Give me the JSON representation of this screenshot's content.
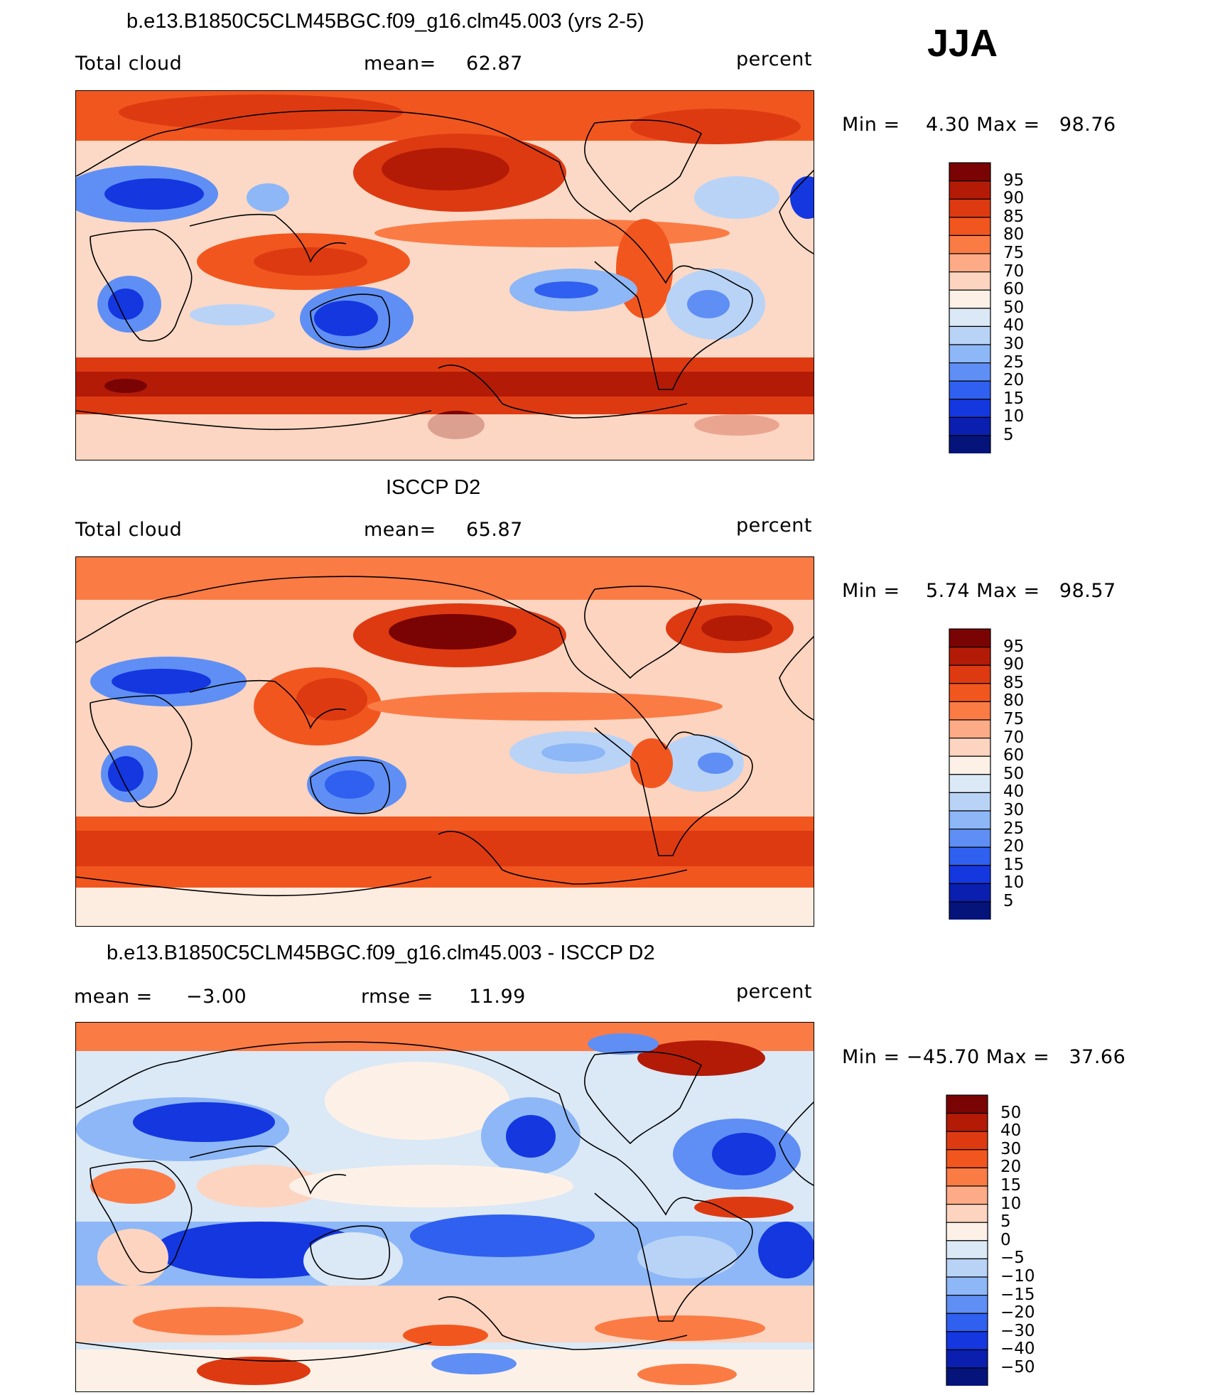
{
  "season": "JJA",
  "units_label": "percent",
  "panels": [
    {
      "title": "b.e13.B1850C5CLM45BGC.f09_g16.clm45.003 (yrs 2-5)",
      "left_label": "Total cloud",
      "stat_label": "mean=",
      "stat_value": "62.87",
      "right_label": "percent",
      "minmax_text": "Min =    4.30 Max =   98.76",
      "colorbar_labels": [
        "95",
        "90",
        "85",
        "80",
        "75",
        "70",
        "60",
        "50",
        "40",
        "30",
        "25",
        "20",
        "15",
        "10",
        "5"
      ]
    },
    {
      "title": "ISCCP D2",
      "left_label": "Total cloud",
      "stat_label": "mean=",
      "stat_value": "65.87",
      "right_label": "percent",
      "minmax_text": "Min =    5.74 Max =   98.57",
      "colorbar_labels": [
        "95",
        "90",
        "85",
        "80",
        "75",
        "70",
        "60",
        "50",
        "40",
        "30",
        "25",
        "20",
        "15",
        "10",
        "5"
      ]
    },
    {
      "title": "b.e13.B1850C5CLM45BGC.f09_g16.clm45.003 - ISCCP D2",
      "left_label_name": "mean =",
      "left_label_value": "−3.00",
      "stat_label": "rmse =",
      "stat_value": "11.99",
      "right_label": "percent",
      "minmax_text": "Min = −45.70 Max =   37.66",
      "colorbar_labels": [
        "50",
        "40",
        "30",
        "20",
        "15",
        "10",
        "5",
        "0",
        "−5",
        "−10",
        "−15",
        "−20",
        "−30",
        "−40",
        "−50"
      ]
    }
  ],
  "colors": {
    "abs_scale": [
      "#7a0403",
      "#b31b07",
      "#de3a12",
      "#f2561f",
      "#fb7b45",
      "#fdab86",
      "#fcd4c0",
      "#fdf1e7",
      "#dbe8f6",
      "#b9d3f6",
      "#8db7f7",
      "#5f8ff4",
      "#3060ef",
      "#1437e0",
      "#0a1fb0",
      "#05147a"
    ],
    "diff_scale": [
      "#7a0403",
      "#b31b07",
      "#de3a12",
      "#f2561f",
      "#fb7b45",
      "#fdab86",
      "#fcd4c0",
      "#fdf1e7",
      "#dbe8f6",
      "#b9d3f6",
      "#8db7f7",
      "#5f8ff4",
      "#3060ef",
      "#1437e0",
      "#0a1fb0",
      "#05147a"
    ]
  }
}
